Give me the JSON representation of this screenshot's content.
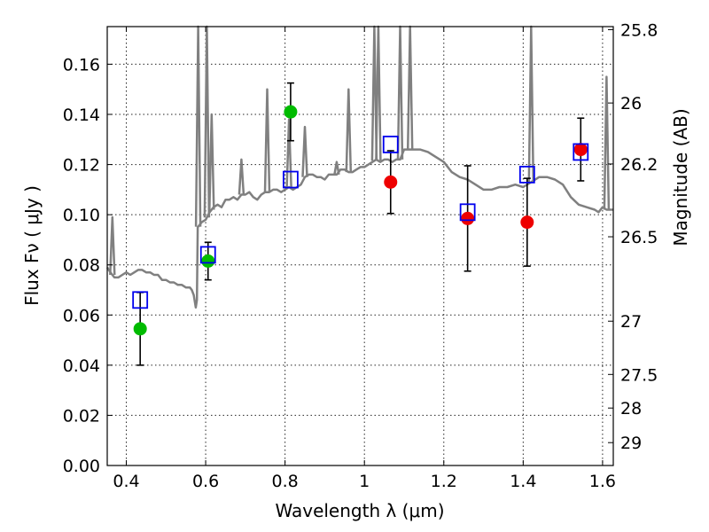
{
  "chart_data": {
    "type": "scatter",
    "xlabel": "Wavelength  λ (μm)",
    "ylabel": "Flux  Fν  ( μJy )",
    "ylabel_right": "Magnitude (AB)",
    "xlim": [
      0.352,
      1.627
    ],
    "ylim": [
      0.0,
      0.175
    ],
    "x_ticks": [
      0.4,
      0.6,
      0.8,
      1.0,
      1.2,
      1.4,
      1.6
    ],
    "x_tick_labels": [
      "0.4",
      "0.6",
      "0.8",
      "1",
      "1.2",
      "1.4",
      "1.6"
    ],
    "y_ticks": [
      0.0,
      0.02,
      0.04,
      0.06,
      0.08,
      0.1,
      0.12,
      0.14,
      0.16
    ],
    "y_tick_labels": [
      "0.00",
      "0.02",
      "0.04",
      "0.06",
      "0.08",
      "0.10",
      "0.12",
      "0.14",
      "0.16"
    ],
    "right_ticks": [
      {
        "label": "25.8",
        "mag": 25.8
      },
      {
        "label": "26",
        "mag": 26.0
      },
      {
        "label": "26.2",
        "mag": 26.2
      },
      {
        "label": "26.5",
        "mag": 26.5
      },
      {
        "label": "27",
        "mag": 27.0
      },
      {
        "label": "27.5",
        "mag": 27.5
      },
      {
        "label": "28",
        "mag": 28.0
      },
      {
        "label": "29",
        "mag": 29.0
      }
    ],
    "grid": true,
    "colors": {
      "template": "#808080",
      "green": "#00bb00",
      "red": "#ee0000",
      "model": "#0000ee",
      "errorbar": "#000000"
    },
    "template_spectrum": {
      "x": [
        0.352,
        0.36,
        0.365,
        0.37,
        0.38,
        0.39,
        0.4,
        0.41,
        0.42,
        0.43,
        0.44,
        0.45,
        0.46,
        0.47,
        0.48,
        0.49,
        0.5,
        0.51,
        0.52,
        0.53,
        0.54,
        0.55,
        0.56,
        0.565,
        0.57,
        0.575,
        0.578,
        0.58,
        0.585,
        0.59,
        0.6,
        0.61,
        0.62,
        0.63,
        0.64,
        0.65,
        0.66,
        0.67,
        0.68,
        0.69,
        0.7,
        0.71,
        0.72,
        0.73,
        0.74,
        0.75,
        0.76,
        0.77,
        0.78,
        0.79,
        0.8,
        0.81,
        0.82,
        0.83,
        0.84,
        0.85,
        0.86,
        0.87,
        0.88,
        0.89,
        0.9,
        0.91,
        0.92,
        0.93,
        0.94,
        0.95,
        0.96,
        0.97,
        0.98,
        0.99,
        1.0,
        1.01,
        1.02,
        1.03,
        1.04,
        1.05,
        1.06,
        1.07,
        1.08,
        1.09,
        1.1,
        1.12,
        1.14,
        1.16,
        1.18,
        1.2,
        1.22,
        1.24,
        1.26,
        1.28,
        1.3,
        1.32,
        1.34,
        1.36,
        1.38,
        1.4,
        1.42,
        1.44,
        1.46,
        1.48,
        1.5,
        1.52,
        1.54,
        1.56,
        1.58,
        1.59,
        1.6,
        1.61,
        1.62,
        1.627
      ],
      "y": [
        0.079,
        0.077,
        0.076,
        0.075,
        0.075,
        0.076,
        0.077,
        0.076,
        0.077,
        0.078,
        0.078,
        0.077,
        0.077,
        0.076,
        0.076,
        0.074,
        0.074,
        0.073,
        0.073,
        0.072,
        0.072,
        0.071,
        0.071,
        0.07,
        0.068,
        0.063,
        0.066,
        0.095,
        0.096,
        0.097,
        0.098,
        0.101,
        0.103,
        0.104,
        0.103,
        0.106,
        0.106,
        0.107,
        0.106,
        0.108,
        0.108,
        0.109,
        0.107,
        0.106,
        0.108,
        0.109,
        0.109,
        0.11,
        0.11,
        0.109,
        0.11,
        0.111,
        0.11,
        0.111,
        0.112,
        0.115,
        0.116,
        0.116,
        0.115,
        0.115,
        0.114,
        0.116,
        0.116,
        0.116,
        0.118,
        0.118,
        0.117,
        0.117,
        0.118,
        0.119,
        0.119,
        0.12,
        0.121,
        0.122,
        0.121,
        0.122,
        0.122,
        0.121,
        0.122,
        0.122,
        0.126,
        0.126,
        0.126,
        0.125,
        0.123,
        0.121,
        0.117,
        0.115,
        0.114,
        0.112,
        0.11,
        0.11,
        0.111,
        0.111,
        0.112,
        0.111,
        0.113,
        0.115,
        0.115,
        0.114,
        0.112,
        0.107,
        0.104,
        0.103,
        0.102,
        0.101,
        0.103,
        0.102,
        0.102,
        0.102
      ]
    },
    "template_emission_lines": [
      {
        "x": 0.365,
        "y": 0.099
      },
      {
        "x": 0.581,
        "y": 0.175
      },
      {
        "x": 0.603,
        "y": 0.175
      },
      {
        "x": 0.615,
        "y": 0.14
      },
      {
        "x": 0.69,
        "y": 0.122
      },
      {
        "x": 0.755,
        "y": 0.15
      },
      {
        "x": 0.81,
        "y": 0.138
      },
      {
        "x": 0.85,
        "y": 0.135
      },
      {
        "x": 0.93,
        "y": 0.121
      },
      {
        "x": 0.96,
        "y": 0.15
      },
      {
        "x": 1.025,
        "y": 0.175
      },
      {
        "x": 1.035,
        "y": 0.175
      },
      {
        "x": 1.09,
        "y": 0.175
      },
      {
        "x": 1.115,
        "y": 0.175
      },
      {
        "x": 1.42,
        "y": 0.175
      },
      {
        "x": 1.61,
        "y": 0.155
      }
    ],
    "series": [
      {
        "color": "#00bb00",
        "marker": "circle",
        "points": [
          {
            "x": 0.435,
            "y": 0.0545,
            "yerr": 0.0145
          },
          {
            "x": 0.606,
            "y": 0.0815,
            "yerr": 0.0075
          },
          {
            "x": 0.814,
            "y": 0.141,
            "yerr": 0.0115
          }
        ]
      },
      {
        "color": "#ee0000",
        "marker": "circle",
        "points": [
          {
            "x": 1.066,
            "y": 0.113,
            "yerr": 0.0125
          },
          {
            "x": 1.26,
            "y": 0.0985,
            "yerr": 0.021
          },
          {
            "x": 1.41,
            "y": 0.097,
            "yerr": 0.0175
          },
          {
            "x": 1.545,
            "y": 0.126,
            "yerr": 0.0125
          }
        ]
      },
      {
        "color": "#0000ee",
        "marker": "open-square",
        "points": [
          {
            "x": 0.435,
            "y": 0.066
          },
          {
            "x": 0.606,
            "y": 0.084
          },
          {
            "x": 0.814,
            "y": 0.114
          },
          {
            "x": 1.066,
            "y": 0.128
          },
          {
            "x": 1.26,
            "y": 0.101
          },
          {
            "x": 1.41,
            "y": 0.116
          },
          {
            "x": 1.545,
            "y": 0.125
          }
        ]
      }
    ]
  }
}
